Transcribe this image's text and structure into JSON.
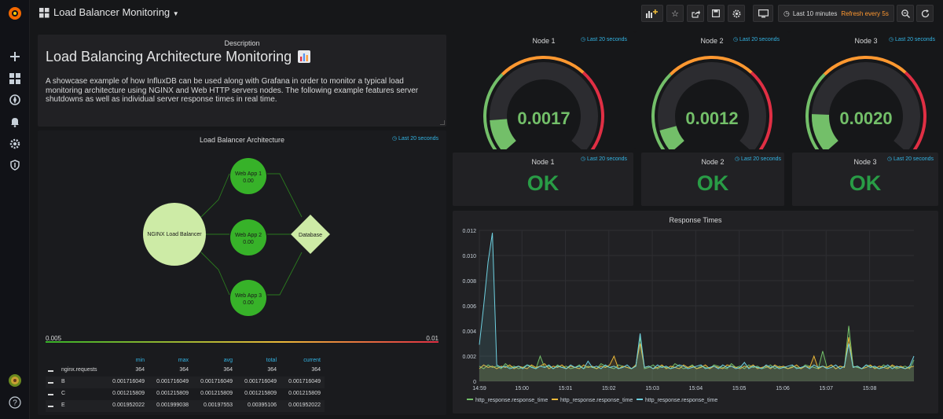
{
  "topbar": {
    "dashboard_title": "Load Balancer Monitoring",
    "time_range": "Last 10 minutes",
    "refresh": "Refresh every 5s"
  },
  "description_panel": {
    "title": "Description",
    "heading": "Load Balancing Architecture Monitoring",
    "body": "A showcase example of how InfluxDB can be used along with Grafana in order to monitor a typical load monitoring architecture using NGINX and Web HTTP servers nodes. The following example features server shutdowns as well as individual server response times in real time."
  },
  "architecture_panel": {
    "title": "Load Balancer Architecture",
    "time_note": "Last 20 seconds",
    "nodes": {
      "nginx": "NGINX Load Balancer",
      "web1_name": "Web App 1",
      "web1_val": "0.00",
      "web2_name": "Web App 2",
      "web2_val": "0.00",
      "web3_name": "Web App 3",
      "web3_val": "0.00",
      "db": "Database"
    },
    "scale_min": "0.005",
    "scale_max": "0.01",
    "legend": {
      "headers": [
        "min",
        "max",
        "avg",
        "total",
        "current"
      ],
      "rows": [
        {
          "name": "nginx.requests",
          "vals": [
            "364",
            "364",
            "364",
            "364",
            "364"
          ]
        },
        {
          "name": "B",
          "vals": [
            "0.001716049",
            "0.001716049",
            "0.001716049",
            "0.001716049",
            "0.001716049"
          ]
        },
        {
          "name": "C",
          "vals": [
            "0.001215809",
            "0.001215809",
            "0.001215809",
            "0.001215809",
            "0.001215809"
          ]
        },
        {
          "name": "E",
          "vals": [
            "0.001952022",
            "0.001999038",
            "0.00197553",
            "0.00395106",
            "0.001952022"
          ]
        }
      ]
    }
  },
  "gauges": [
    {
      "title": "Node 1",
      "time_note": "Last 20 seconds",
      "value": "0.0017"
    },
    {
      "title": "Node 2",
      "time_note": "Last 20 seconds",
      "value": "0.0012"
    },
    {
      "title": "Node 3",
      "time_note": "Last 20 seconds",
      "value": "0.0020"
    }
  ],
  "status_panels": [
    {
      "title": "Node 1",
      "time_note": "Last 20 seconds",
      "status": "OK"
    },
    {
      "title": "Node 2",
      "time_note": "Last 20 seconds",
      "status": "OK"
    },
    {
      "title": "Node 3",
      "time_note": "Last 20 seconds",
      "status": "OK"
    }
  ],
  "colors": {
    "green": "#73bf69",
    "dark_green": "#299c46",
    "orange": "#ff9830",
    "red": "#e02f44",
    "blue": "#33b5e5",
    "yellow": "#eab839",
    "cyan": "#6ed0e0"
  },
  "chart_data": {
    "type": "line",
    "title": "Response Times",
    "ylim": [
      0,
      0.012
    ],
    "y_ticks": [
      "0",
      "0.002",
      "0.004",
      "0.006",
      "0.008",
      "0.010",
      "0.012"
    ],
    "x_ticks": [
      "14:59",
      "15:00",
      "15:01",
      "15:02",
      "15:03",
      "15:04",
      "15:05",
      "15:06",
      "15:07",
      "15:08"
    ],
    "grid": true,
    "legend_position": "bottom",
    "x": [
      0,
      0.25,
      0.5,
      0.75,
      1,
      1.25,
      1.5,
      1.75,
      2,
      2.25,
      2.5,
      2.75,
      3,
      3.25,
      3.5,
      3.75,
      4,
      4.25,
      4.5,
      4.75,
      5,
      5.25,
      5.5,
      5.75,
      6,
      6.25,
      6.5,
      6.75,
      7,
      7.25,
      7.5,
      7.75,
      8,
      8.25,
      8.5,
      8.75,
      9,
      9.25,
      9.5,
      9.75,
      10,
      10.25,
      10.5,
      10.75,
      11,
      11.25,
      11.5,
      11.75,
      12,
      12.25,
      12.5,
      12.75,
      13,
      13.25,
      13.5,
      13.75,
      14,
      14.25,
      14.5,
      14.75,
      15,
      15.25,
      15.5,
      15.75,
      16,
      16.25,
      16.5,
      16.75,
      17,
      17.25,
      17.5,
      17.75,
      18,
      18.25,
      18.5,
      18.75,
      19,
      19.25,
      19.5,
      19.75,
      20,
      20.25,
      20.5,
      20.75,
      21,
      21.25,
      21.5,
      21.75,
      22,
      22.25,
      22.5,
      22.75,
      23,
      23.25,
      23.5,
      23.75,
      24,
      24.25,
      24.5,
      24.75,
      25
    ],
    "series": [
      {
        "name": "http_response.response_time",
        "color": "#73bf69",
        "values": [
          0.0012,
          0.001,
          0.0013,
          0.0011,
          0.0012,
          0.001,
          0.0014,
          0.0011,
          0.0012,
          0.001,
          0.0011,
          0.0013,
          0.0012,
          0.001,
          0.002,
          0.0011,
          0.0012,
          0.001,
          0.0013,
          0.0011,
          0.0012,
          0.001,
          0.0011,
          0.0013,
          0.001,
          0.0012,
          0.0011,
          0.001,
          0.0014,
          0.0012,
          0.0011,
          0.001,
          0.0013,
          0.0012,
          0.0011,
          0.001,
          0.0012,
          0.0035,
          0.001,
          0.0011,
          0.0013,
          0.001,
          0.0012,
          0.0011,
          0.001,
          0.0014,
          0.0012,
          0.001,
          0.0011,
          0.0013,
          0.001,
          0.0012,
          0.0011,
          0.001,
          0.0013,
          0.0012,
          0.0011,
          0.001,
          0.0014,
          0.0011,
          0.0012,
          0.001,
          0.0013,
          0.0011,
          0.0012,
          0.001,
          0.0011,
          0.0013,
          0.001,
          0.0012,
          0.0011,
          0.001,
          0.0012,
          0.0011,
          0.001,
          0.0013,
          0.0012,
          0.0011,
          0.001,
          0.0024,
          0.0011,
          0.0013,
          0.001,
          0.0012,
          0.0011,
          0.0044,
          0.0012,
          0.0011,
          0.001,
          0.0013,
          0.0012,
          0.0011,
          0.001,
          0.0013,
          0.0011,
          0.0012,
          0.001,
          0.0011,
          0.0012,
          0.001,
          0.0017
        ]
      },
      {
        "name": "http_response.response_time",
        "color": "#eab839",
        "values": [
          0.001,
          0.0013,
          0.0011,
          0.0012,
          0.001,
          0.0012,
          0.0011,
          0.0013,
          0.001,
          0.0012,
          0.0011,
          0.001,
          0.0013,
          0.0011,
          0.0012,
          0.0014,
          0.001,
          0.0012,
          0.0011,
          0.0013,
          0.001,
          0.0012,
          0.0011,
          0.001,
          0.0013,
          0.0011,
          0.0012,
          0.001,
          0.0012,
          0.0011,
          0.0013,
          0.002,
          0.001,
          0.0012,
          0.0011,
          0.001,
          0.0013,
          0.003,
          0.0011,
          0.0012,
          0.001,
          0.0011,
          0.0013,
          0.001,
          0.0012,
          0.0011,
          0.001,
          0.0013,
          0.0011,
          0.0012,
          0.001,
          0.0011,
          0.0013,
          0.001,
          0.0012,
          0.0011,
          0.001,
          0.0013,
          0.0012,
          0.0011,
          0.001,
          0.0012,
          0.0011,
          0.0013,
          0.001,
          0.0011,
          0.0012,
          0.001,
          0.0013,
          0.0011,
          0.0012,
          0.001,
          0.0011,
          0.0013,
          0.001,
          0.0012,
          0.0011,
          0.002,
          0.001,
          0.0012,
          0.0011,
          0.0013,
          0.001,
          0.0012,
          0.0011,
          0.0035,
          0.0011,
          0.0012,
          0.001,
          0.0011,
          0.0013,
          0.001,
          0.0012,
          0.0011,
          0.001,
          0.0013,
          0.0011,
          0.0012,
          0.001,
          0.0011,
          0.0012
        ]
      },
      {
        "name": "http_response.response_time",
        "color": "#6ed0e0",
        "values": [
          0.0029,
          0.006,
          0.0095,
          0.0118,
          0.0013,
          0.0011,
          0.0012,
          0.001,
          0.0011,
          0.0012,
          0.001,
          0.0013,
          0.0011,
          0.001,
          0.0012,
          0.0011,
          0.0013,
          0.001,
          0.0012,
          0.0011,
          0.001,
          0.0013,
          0.0011,
          0.0012,
          0.001,
          0.0016,
          0.0011,
          0.0012,
          0.001,
          0.0013,
          0.0011,
          0.0012,
          0.001,
          0.0011,
          0.0013,
          0.001,
          0.0012,
          0.0038,
          0.0011,
          0.0012,
          0.001,
          0.0013,
          0.0011,
          0.0012,
          0.001,
          0.0011,
          0.0013,
          0.0012,
          0.001,
          0.0011,
          0.0012,
          0.0013,
          0.001,
          0.0011,
          0.0012,
          0.001,
          0.0013,
          0.0011,
          0.0012,
          0.001,
          0.0011,
          0.0015,
          0.001,
          0.0012,
          0.0011,
          0.001,
          0.0013,
          0.0011,
          0.0012,
          0.001,
          0.0011,
          0.0012,
          0.0013,
          0.001,
          0.0011,
          0.0012,
          0.001,
          0.0013,
          0.0011,
          0.0012,
          0.001,
          0.0011,
          0.0013,
          0.001,
          0.0012,
          0.003,
          0.0011,
          0.0012,
          0.001,
          0.0013,
          0.0011,
          0.0012,
          0.001,
          0.0011,
          0.0013,
          0.001,
          0.0012,
          0.0011,
          0.001,
          0.0012,
          0.002
        ]
      }
    ]
  }
}
